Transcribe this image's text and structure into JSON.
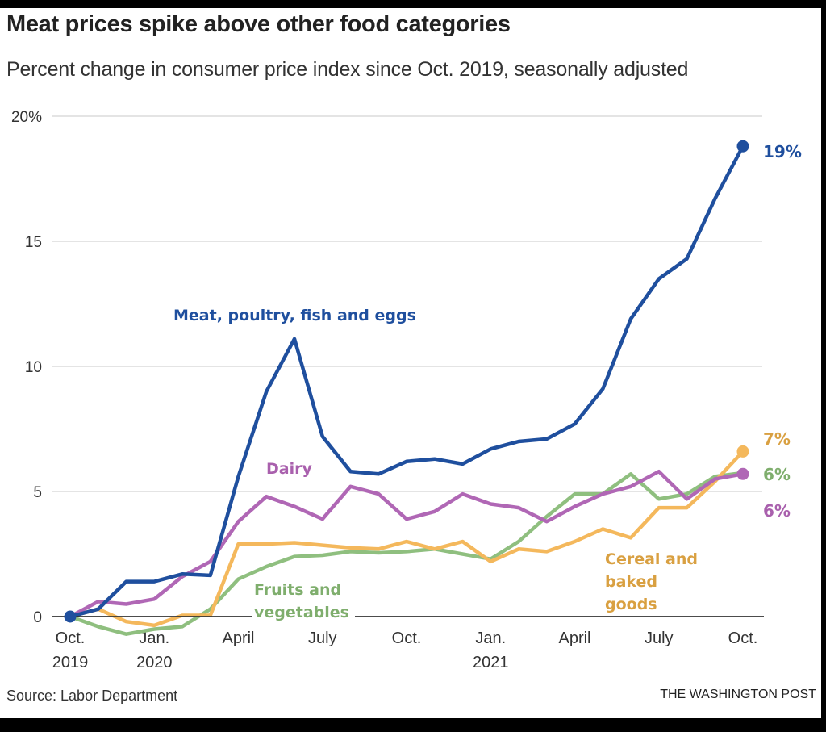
{
  "header": {
    "title": "Meat prices spike above other food categories",
    "subtitle": "Percent change in consumer price index since Oct. 2019, seasonally adjusted"
  },
  "footer": {
    "source": "Source: Labor Department",
    "credit": "THE WASHINGTON POST"
  },
  "chart_data": {
    "type": "line",
    "title": "Meat prices spike above other food categories",
    "subtitle": "Percent change in consumer price index since Oct. 2019, seasonally adjusted",
    "xlabel": "",
    "ylabel": "Percent change",
    "ylim": [
      0,
      20
    ],
    "grid": true,
    "legend": "inline labels",
    "x": [
      "2019-10",
      "2019-11",
      "2019-12",
      "2020-01",
      "2020-02",
      "2020-03",
      "2020-04",
      "2020-05",
      "2020-06",
      "2020-07",
      "2020-08",
      "2020-09",
      "2020-10",
      "2020-11",
      "2020-12",
      "2021-01",
      "2021-02",
      "2021-03",
      "2021-04",
      "2021-05",
      "2021-06",
      "2021-07",
      "2021-08",
      "2021-09",
      "2021-10"
    ],
    "y_ticks": [
      {
        "value": 0,
        "label": "0"
      },
      {
        "value": 5,
        "label": "5"
      },
      {
        "value": 10,
        "label": "10"
      },
      {
        "value": 15,
        "label": "15"
      },
      {
        "value": 20,
        "label": "20%"
      }
    ],
    "x_ticks": [
      {
        "index": 0,
        "line1": "Oct.",
        "line2": "2019"
      },
      {
        "index": 3,
        "line1": "Jan.",
        "line2": "2020"
      },
      {
        "index": 6,
        "line1": "April",
        "line2": ""
      },
      {
        "index": 9,
        "line1": "July",
        "line2": ""
      },
      {
        "index": 12,
        "line1": "Oct.",
        "line2": ""
      },
      {
        "index": 15,
        "line1": "Jan.",
        "line2": "2021"
      },
      {
        "index": 18,
        "line1": "April",
        "line2": ""
      },
      {
        "index": 21,
        "line1": "July",
        "line2": ""
      },
      {
        "index": 24,
        "line1": "Oct.",
        "line2": ""
      }
    ],
    "series": [
      {
        "key": "fruits",
        "name": "Fruits and vegetables",
        "label_lines": [
          "Fruits and",
          "vegetables"
        ],
        "color": "#8fbf7f",
        "label_color": "#7fae6d",
        "end_label": "6%",
        "end_dot": false,
        "values": [
          0,
          -0.4,
          -0.7,
          -0.5,
          -0.4,
          0.3,
          1.5,
          2.0,
          2.4,
          2.45,
          2.6,
          2.55,
          2.6,
          2.7,
          2.5,
          2.3,
          3.0,
          4.0,
          4.9,
          4.9,
          5.7,
          4.7,
          4.9,
          5.6,
          5.75
        ]
      },
      {
        "key": "cereal",
        "name": "Cereal and baked goods",
        "label_lines": [
          "Cereal and",
          "baked",
          "goods"
        ],
        "color": "#f4b85c",
        "label_color": "#d9a041",
        "end_label": "7%",
        "end_dot": true,
        "values": [
          0,
          0.3,
          -0.2,
          -0.35,
          0.05,
          0.05,
          2.9,
          2.9,
          2.95,
          2.85,
          2.75,
          2.7,
          3.0,
          2.7,
          3.0,
          2.2,
          2.7,
          2.6,
          3.0,
          3.5,
          3.15,
          4.35,
          4.35,
          5.4,
          6.6
        ]
      },
      {
        "key": "dairy",
        "name": "Dairy",
        "label_lines": [
          "Dairy"
        ],
        "color": "#b067b5",
        "label_color": "#a960ad",
        "end_label": "6%",
        "end_dot": true,
        "values": [
          0,
          0.6,
          0.5,
          0.7,
          1.6,
          2.2,
          3.8,
          4.8,
          4.4,
          3.9,
          5.2,
          4.9,
          3.9,
          4.2,
          4.9,
          4.5,
          4.35,
          3.8,
          4.4,
          4.9,
          5.2,
          5.8,
          4.7,
          5.5,
          5.7
        ]
      },
      {
        "key": "meat",
        "name": "Meat, poultry, fish and eggs",
        "label_lines": [
          "Meat, poultry, fish and eggs"
        ],
        "color": "#1f4f9e",
        "label_color": "#1f4f9e",
        "end_label": "19%",
        "end_dot": true,
        "values": [
          0,
          0.3,
          1.4,
          1.4,
          1.7,
          1.65,
          5.6,
          9.0,
          11.1,
          7.2,
          5.8,
          5.7,
          6.2,
          6.3,
          6.1,
          6.7,
          7.0,
          7.1,
          7.7,
          9.1,
          11.9,
          13.5,
          14.3,
          16.7,
          18.8
        ]
      }
    ]
  }
}
